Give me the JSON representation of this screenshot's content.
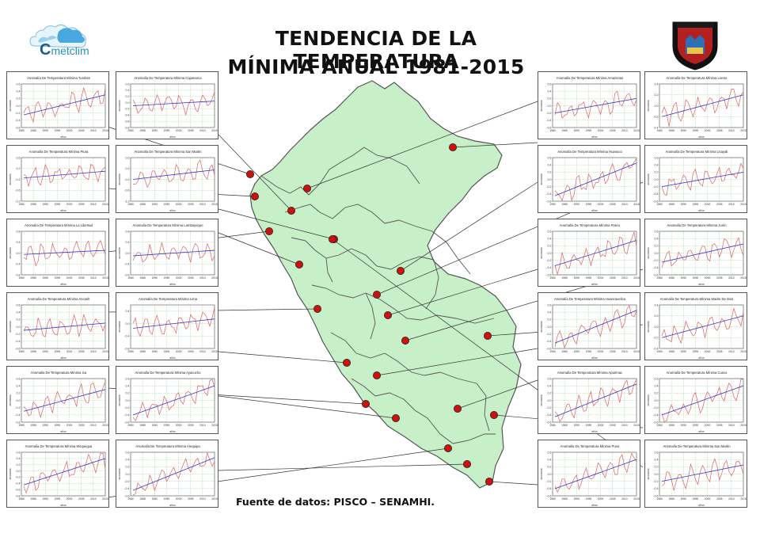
{
  "header": {
    "title_line1": "TENDENCIA DE LA TEMPERATURA",
    "title_line2": "MÍNIMA ANUAL 1981-2015",
    "logo_text": "metclim",
    "logo_letter": "C"
  },
  "footer": {
    "source": "Fuente de datos: PISCO – SENAMHI."
  },
  "colors": {
    "map_fill": "#c8f0c8",
    "map_border": "#555555",
    "trend": "#3333cc",
    "anomaly": "#e06060",
    "marker": "#cc1111",
    "grid": "#7fc47f"
  },
  "chart_data": [
    {
      "type": "line",
      "title": "Anomalía De Temperatura Mínima Tumbes",
      "ylim": [
        -0.6,
        0.6
      ],
      "x_ticks": [
        "1980",
        "1985",
        "1990",
        "1995",
        "2000",
        "2005",
        "2010",
        "2015"
      ],
      "xlabel": "años",
      "ylabel": "anomalía",
      "y_ticks": [
        "-0.6",
        "-0.4",
        "-0.2",
        "0.0",
        "0.2",
        "0.4",
        "0.6"
      ],
      "trend": [
        -0.25,
        0.3
      ],
      "seed": 1
    },
    {
      "type": "line",
      "title": "Anomalía De Temperatura Mínima Cajamarca",
      "ylim": [
        -0.8,
        0.6
      ],
      "x_ticks": [
        "1980",
        "1985",
        "1990",
        "1995",
        "2000",
        "2005",
        "2010",
        "2015"
      ],
      "xlabel": "años",
      "ylabel": "anomalía",
      "y_ticks": [
        "-0.8",
        "-0.6",
        "-0.4",
        "-0.2",
        "0.0",
        "0.2",
        "0.4",
        "0.6"
      ],
      "trend": [
        -0.1,
        0.05
      ],
      "seed": 2
    },
    {
      "type": "line",
      "title": "Anomalía De Temperatura Mínima Piura",
      "ylim": [
        -1.0,
        0.6
      ],
      "x_ticks": [
        "1980",
        "1985",
        "1990",
        "1995",
        "2000",
        "2005",
        "2010",
        "2015"
      ],
      "xlabel": "años",
      "ylabel": "anomalía",
      "y_ticks": [
        "-1.0",
        "-0.6",
        "-0.2",
        "0.2",
        "0.6"
      ],
      "trend": [
        -0.15,
        0.1
      ],
      "seed": 3
    },
    {
      "type": "line",
      "title": "Anomalía De Temperatura Mínima San Martin",
      "ylim": [
        -1.0,
        0.6
      ],
      "x_ticks": [
        "1980",
        "1985",
        "1990",
        "1995",
        "2000",
        "2005",
        "2010",
        "2015"
      ],
      "xlabel": "años",
      "ylabel": "anomalía",
      "y_ticks": [
        "-1.0",
        "-0.6",
        "-0.2",
        "0.2",
        "0.6"
      ],
      "trend": [
        -0.2,
        0.15
      ],
      "seed": 4
    },
    {
      "type": "line",
      "title": "Anomalía De Temperatura Mínima La Libertad",
      "ylim": [
        -0.8,
        0.8
      ],
      "x_ticks": [
        "1980",
        "1985",
        "1990",
        "1995",
        "2000",
        "2005",
        "2010",
        "2015"
      ],
      "xlabel": "años",
      "ylabel": "anomalía",
      "y_ticks": [
        "-0.8",
        "-0.4",
        "0.0",
        "0.4",
        "0.8"
      ],
      "trend": [
        -0.05,
        0.1
      ],
      "seed": 5
    },
    {
      "type": "line",
      "title": "Anomalía De Temperatura Mínima Lambayeque",
      "ylim": [
        -0.8,
        0.8
      ],
      "x_ticks": [
        "1980",
        "1985",
        "1990",
        "1995",
        "2000",
        "2005",
        "2010",
        "2015"
      ],
      "xlabel": "años",
      "ylabel": "anomalía",
      "y_ticks": [
        "-0.8",
        "-0.4",
        "0.0",
        "0.4",
        "0.8"
      ],
      "trend": [
        -0.1,
        0.1
      ],
      "seed": 6
    },
    {
      "type": "line",
      "title": "Anomalía De Temperatura Mínima Ancash",
      "ylim": [
        -0.6,
        0.6
      ],
      "x_ticks": [
        "1980",
        "1985",
        "1990",
        "1995",
        "2000",
        "2005",
        "2010",
        "2015"
      ],
      "xlabel": "años",
      "ylabel": "anomalía",
      "y_ticks": [
        "-0.6",
        "-0.4",
        "-0.2",
        "0.0",
        "0.2",
        "0.4",
        "0.6"
      ],
      "trend": [
        -0.1,
        0.1
      ],
      "seed": 7
    },
    {
      "type": "line",
      "title": "Anomalía De Temperatura Mínima Lima",
      "ylim": [
        -0.8,
        0.6
      ],
      "x_ticks": [
        "1980",
        "1985",
        "1990",
        "1995",
        "2000",
        "2005",
        "2010",
        "2015"
      ],
      "xlabel": "años",
      "ylabel": "anomalía",
      "y_ticks": [
        "-0.8",
        "-0.4",
        "0.0",
        "0.4"
      ],
      "trend": [
        -0.15,
        0.15
      ],
      "seed": 8
    },
    {
      "type": "line",
      "title": "Anomalía De Temperatura Mínima Ica",
      "ylim": [
        -0.6,
        0.6
      ],
      "x_ticks": [
        "1980",
        "1985",
        "1990",
        "1995",
        "2000",
        "2005",
        "2010",
        "2015"
      ],
      "xlabel": "años",
      "ylabel": "anomalía",
      "y_ticks": [
        "-0.6",
        "-0.4",
        "-0.2",
        "0.0",
        "0.2",
        "0.4",
        "0.6"
      ],
      "trend": [
        -0.3,
        0.3
      ],
      "seed": 9
    },
    {
      "type": "line",
      "title": "Anomalía De Temperatura Mínima Ayacucho",
      "ylim": [
        -0.6,
        0.6
      ],
      "x_ticks": [
        "1980",
        "1985",
        "1990",
        "1995",
        "2000",
        "2005",
        "2010",
        "2015"
      ],
      "xlabel": "años",
      "ylabel": "anomalía",
      "y_ticks": [
        "-0.6",
        "-0.4",
        "-0.2",
        "0.0",
        "0.2",
        "0.4",
        "0.6"
      ],
      "trend": [
        -0.4,
        0.4
      ],
      "seed": 10
    },
    {
      "type": "line",
      "title": "Anomalía De Temperatura Mínima Moquegua",
      "ylim": [
        -0.8,
        0.6
      ],
      "x_ticks": [
        "1980",
        "1985",
        "1990",
        "1995",
        "2000",
        "2005",
        "2010",
        "2015"
      ],
      "xlabel": "años",
      "ylabel": "anomalía",
      "y_ticks": [
        "-0.8",
        "-0.6",
        "-0.4",
        "-0.2",
        "0.0",
        "0.2",
        "0.4",
        "0.6"
      ],
      "trend": [
        -0.45,
        0.4
      ],
      "seed": 11
    },
    {
      "type": "line",
      "title": "Anomalía De Temperatura Mínima Arequipa",
      "ylim": [
        -0.6,
        0.6
      ],
      "x_ticks": [
        "1980",
        "1985",
        "1990",
        "1995",
        "2000",
        "2005",
        "2010",
        "2015"
      ],
      "xlabel": "años",
      "ylabel": "anomalía",
      "y_ticks": [
        "-0.6",
        "-0.4",
        "-0.2",
        "0.0",
        "0.2",
        "0.4",
        "0.6"
      ],
      "trend": [
        -0.45,
        0.45
      ],
      "seed": 12
    },
    {
      "type": "line",
      "title": "Anomalía De Temperatura Mínima Amazonas",
      "ylim": [
        -0.6,
        0.6
      ],
      "x_ticks": [
        "1980",
        "1985",
        "1990",
        "1995",
        "2000",
        "2005",
        "2010",
        "2015"
      ],
      "xlabel": "años",
      "ylabel": "anomalía",
      "y_ticks": [
        "-0.6",
        "-0.4",
        "-0.2",
        "0.0",
        "0.2",
        "0.4",
        "0.6"
      ],
      "trend": [
        -0.2,
        0.2
      ],
      "seed": 13
    },
    {
      "type": "line",
      "title": "Anomalía De Temperatura Mínima Loreto",
      "ylim": [
        -0.4,
        0.4
      ],
      "x_ticks": [
        "1980",
        "1985",
        "1990",
        "1995",
        "2000",
        "2005",
        "2010",
        "2015"
      ],
      "xlabel": "años",
      "ylabel": "anomalía",
      "y_ticks": [
        "-0.4",
        "-0.2",
        "0.0",
        "0.2",
        "0.4"
      ],
      "trend": [
        -0.2,
        0.2
      ],
      "seed": 14
    },
    {
      "type": "line",
      "title": "Anomalía De Temperatura Mínima Huanuco",
      "ylim": [
        -0.6,
        0.6
      ],
      "x_ticks": [
        "1980",
        "1985",
        "1990",
        "1995",
        "2000",
        "2005",
        "2010",
        "2015"
      ],
      "xlabel": "años",
      "ylabel": "anomalía",
      "y_ticks": [
        "-0.6",
        "-0.4",
        "-0.2",
        "0.0",
        "0.2",
        "0.4",
        "0.6"
      ],
      "trend": [
        -0.45,
        0.45
      ],
      "seed": 15
    },
    {
      "type": "line",
      "title": "Anomalía De Temperatura Mínima Ucayali",
      "ylim": [
        -0.6,
        0.6
      ],
      "x_ticks": [
        "1980",
        "1985",
        "1990",
        "1995",
        "2000",
        "2005",
        "2010",
        "2015"
      ],
      "xlabel": "años",
      "ylabel": "anomalía",
      "y_ticks": [
        "-0.6",
        "-0.4",
        "-0.2",
        "0.0",
        "0.2",
        "0.4",
        "0.6"
      ],
      "trend": [
        -0.2,
        0.2
      ],
      "seed": 16
    },
    {
      "type": "line",
      "title": "Anomalía De Temperatura Mínima Pasco",
      "ylim": [
        -0.6,
        0.6
      ],
      "x_ticks": [
        "1980",
        "1985",
        "1990",
        "1995",
        "2000",
        "2005",
        "2010",
        "2015"
      ],
      "xlabel": "años",
      "ylabel": "anomalía",
      "y_ticks": [
        "-0.6",
        "-0.4",
        "-0.2",
        "0.0",
        "0.2",
        "0.4",
        "0.6"
      ],
      "trend": [
        -0.35,
        0.35
      ],
      "seed": 17
    },
    {
      "type": "line",
      "title": "Anomalía De Temperatura Mínima Junín",
      "ylim": [
        -0.6,
        0.6
      ],
      "x_ticks": [
        "1980",
        "1985",
        "1990",
        "1995",
        "2000",
        "2005",
        "2010",
        "2015"
      ],
      "xlabel": "años",
      "ylabel": "anomalía",
      "y_ticks": [
        "-0.6",
        "-0.4",
        "-0.2",
        "0.0",
        "0.2",
        "0.4",
        "0.6"
      ],
      "trend": [
        -0.25,
        0.25
      ],
      "seed": 18
    },
    {
      "type": "line",
      "title": "Anomalía De Temperatura Mínima Huancavelica",
      "ylim": [
        -0.6,
        0.6
      ],
      "x_ticks": [
        "1980",
        "1985",
        "1990",
        "1995",
        "2000",
        "2005",
        "2010",
        "2015"
      ],
      "xlabel": "años",
      "ylabel": "anomalía",
      "y_ticks": [
        "-0.6",
        "-0.4",
        "-0.2",
        "0.0",
        "0.2",
        "0.4",
        "0.6"
      ],
      "trend": [
        -0.45,
        0.45
      ],
      "seed": 19
    },
    {
      "type": "line",
      "title": "Anomalía De Temperatura Mínima Madre De Dios",
      "ylim": [
        -0.4,
        0.4
      ],
      "x_ticks": [
        "1980",
        "1985",
        "1990",
        "1995",
        "2000",
        "2005",
        "2010",
        "2015"
      ],
      "xlabel": "años",
      "ylabel": "anomalía",
      "y_ticks": [
        "-0.4",
        "-0.2",
        "0.0",
        "0.2",
        "0.4"
      ],
      "trend": [
        -0.2,
        0.2
      ],
      "seed": 20
    },
    {
      "type": "line",
      "title": "Anomalía De Temperatura Mínima Apurimac",
      "ylim": [
        -0.6,
        0.6
      ],
      "x_ticks": [
        "1980",
        "1985",
        "1990",
        "1995",
        "2000",
        "2005",
        "2010",
        "2015"
      ],
      "xlabel": "años",
      "ylabel": "anomalía",
      "y_ticks": [
        "-0.6",
        "-0.4",
        "-0.2",
        "0.0",
        "0.2",
        "0.4",
        "0.6"
      ],
      "trend": [
        -0.45,
        0.45
      ],
      "seed": 21
    },
    {
      "type": "line",
      "title": "Anomalía De Temperatura Mínima Cusco",
      "ylim": [
        -0.6,
        0.6
      ],
      "x_ticks": [
        "1980",
        "1985",
        "1990",
        "1995",
        "2000",
        "2005",
        "2010",
        "2015"
      ],
      "xlabel": "años",
      "ylabel": "anomalía",
      "y_ticks": [
        "-0.6",
        "-0.4",
        "-0.2",
        "0.0",
        "0.2",
        "0.4",
        "0.6"
      ],
      "trend": [
        -0.4,
        0.4
      ],
      "seed": 22
    },
    {
      "type": "line",
      "title": "Anomalía De Temperatura Mínima Puno",
      "ylim": [
        -0.6,
        0.6
      ],
      "x_ticks": [
        "1980",
        "1985",
        "1990",
        "1995",
        "2000",
        "2005",
        "2010",
        "2015"
      ],
      "xlabel": "años",
      "ylabel": "anomalía",
      "y_ticks": [
        "-0.6",
        "-0.4",
        "-0.2",
        "0.0",
        "0.2",
        "0.4",
        "0.6"
      ],
      "trend": [
        -0.4,
        0.4
      ],
      "seed": 23
    },
    {
      "type": "line",
      "title": "Anomalía De Temperatura Mínima San Martin",
      "ylim": [
        -0.6,
        0.6
      ],
      "x_ticks": [
        "1980",
        "1985",
        "1990",
        "1995",
        "2000",
        "2005",
        "2010",
        "2015"
      ],
      "xlabel": "años",
      "ylabel": "anomalía",
      "y_ticks": [
        "-0.6",
        "-0.4",
        "-0.2",
        "0.0",
        "0.2",
        "0.4",
        "0.6"
      ],
      "trend": [
        -0.2,
        0.25
      ],
      "seed": 24
    }
  ]
}
